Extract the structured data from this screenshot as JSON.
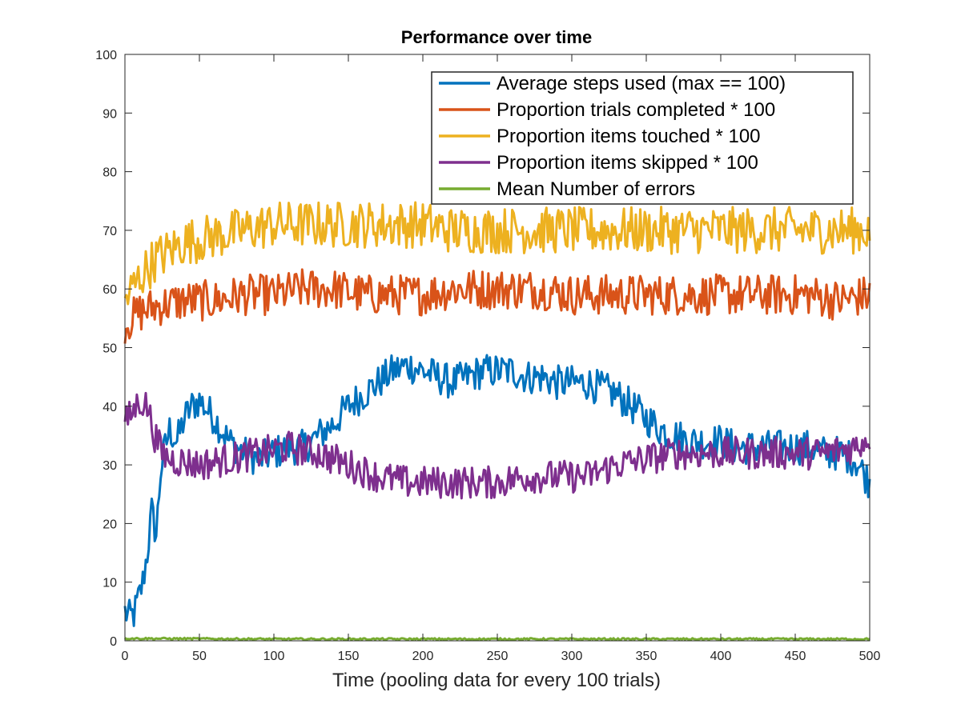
{
  "chart_data": {
    "type": "line",
    "title": "Performance over time",
    "xlabel": "Time (pooling data for every 100 trials)",
    "ylabel": "",
    "xlim": [
      0,
      500
    ],
    "ylim": [
      0,
      100
    ],
    "x_ticks": [
      0,
      50,
      100,
      150,
      200,
      250,
      300,
      350,
      400,
      450,
      500
    ],
    "y_ticks": [
      0,
      10,
      20,
      30,
      40,
      50,
      60,
      70,
      80,
      90,
      100
    ],
    "grid": false,
    "legend_position": "top-right",
    "series": [
      {
        "name": "Average steps used (max == 100)",
        "color": "#0072BD",
        "points": [
          [
            0,
            5
          ],
          [
            3,
            4
          ],
          [
            6,
            4.5
          ],
          [
            9,
            7
          ],
          [
            12,
            10
          ],
          [
            15,
            15
          ],
          [
            18,
            22
          ],
          [
            21,
            18
          ],
          [
            24,
            29
          ],
          [
            27,
            33
          ],
          [
            30,
            36
          ],
          [
            35,
            34
          ],
          [
            40,
            38
          ],
          [
            45,
            40
          ],
          [
            50,
            41
          ],
          [
            60,
            38
          ],
          [
            70,
            34
          ],
          [
            80,
            32
          ],
          [
            90,
            31
          ],
          [
            100,
            32
          ],
          [
            110,
            33
          ],
          [
            120,
            33
          ],
          [
            130,
            35
          ],
          [
            140,
            37
          ],
          [
            150,
            40
          ],
          [
            160,
            42
          ],
          [
            170,
            44
          ],
          [
            180,
            46
          ],
          [
            190,
            47
          ],
          [
            200,
            46
          ],
          [
            210,
            45
          ],
          [
            220,
            44
          ],
          [
            230,
            45
          ],
          [
            240,
            46
          ],
          [
            250,
            46
          ],
          [
            260,
            46
          ],
          [
            270,
            45
          ],
          [
            280,
            45
          ],
          [
            290,
            44
          ],
          [
            300,
            44
          ],
          [
            310,
            44
          ],
          [
            320,
            43
          ],
          [
            330,
            42
          ],
          [
            340,
            40
          ],
          [
            350,
            38
          ],
          [
            360,
            36
          ],
          [
            370,
            35
          ],
          [
            380,
            34
          ],
          [
            390,
            34
          ],
          [
            400,
            34
          ],
          [
            410,
            33
          ],
          [
            420,
            33
          ],
          [
            430,
            33
          ],
          [
            440,
            33
          ],
          [
            450,
            33
          ],
          [
            460,
            33
          ],
          [
            470,
            32
          ],
          [
            480,
            32
          ],
          [
            490,
            31
          ],
          [
            500,
            27
          ]
        ],
        "noise": 3
      },
      {
        "name": "Proportion trials completed * 100",
        "color": "#D95319",
        "points": [
          [
            0,
            54
          ],
          [
            5,
            55
          ],
          [
            10,
            56
          ],
          [
            20,
            57
          ],
          [
            40,
            58
          ],
          [
            60,
            58
          ],
          [
            80,
            59
          ],
          [
            100,
            59
          ],
          [
            120,
            60
          ],
          [
            140,
            60
          ],
          [
            160,
            59
          ],
          [
            180,
            59
          ],
          [
            200,
            59
          ],
          [
            220,
            60
          ],
          [
            240,
            60
          ],
          [
            260,
            60
          ],
          [
            280,
            60
          ],
          [
            300,
            59
          ],
          [
            320,
            59
          ],
          [
            340,
            59
          ],
          [
            360,
            59
          ],
          [
            380,
            59
          ],
          [
            400,
            59
          ],
          [
            420,
            59
          ],
          [
            440,
            59
          ],
          [
            460,
            59
          ],
          [
            480,
            58
          ],
          [
            500,
            59
          ]
        ],
        "noise": 3.5
      },
      {
        "name": "Proportion items touched * 100",
        "color": "#EDB120",
        "points": [
          [
            0,
            58
          ],
          [
            5,
            60
          ],
          [
            10,
            62
          ],
          [
            20,
            65
          ],
          [
            40,
            68
          ],
          [
            60,
            69
          ],
          [
            80,
            70
          ],
          [
            100,
            71
          ],
          [
            120,
            71
          ],
          [
            140,
            71
          ],
          [
            160,
            71
          ],
          [
            180,
            71
          ],
          [
            200,
            71
          ],
          [
            220,
            70
          ],
          [
            240,
            70
          ],
          [
            260,
            70
          ],
          [
            280,
            70
          ],
          [
            300,
            70
          ],
          [
            320,
            70
          ],
          [
            340,
            70
          ],
          [
            360,
            70
          ],
          [
            380,
            70
          ],
          [
            400,
            70
          ],
          [
            420,
            70
          ],
          [
            440,
            70
          ],
          [
            460,
            70
          ],
          [
            480,
            70
          ],
          [
            500,
            70
          ]
        ],
        "noise": 4
      },
      {
        "name": "Proportion items skipped * 100",
        "color": "#7E2F8E",
        "points": [
          [
            0,
            37
          ],
          [
            5,
            39
          ],
          [
            10,
            41
          ],
          [
            15,
            40
          ],
          [
            20,
            35
          ],
          [
            25,
            32
          ],
          [
            30,
            31
          ],
          [
            50,
            30
          ],
          [
            70,
            31
          ],
          [
            90,
            32
          ],
          [
            110,
            33
          ],
          [
            130,
            32
          ],
          [
            150,
            30
          ],
          [
            170,
            28
          ],
          [
            190,
            27
          ],
          [
            210,
            27
          ],
          [
            230,
            27
          ],
          [
            250,
            27
          ],
          [
            270,
            28
          ],
          [
            290,
            28
          ],
          [
            310,
            28
          ],
          [
            330,
            30
          ],
          [
            350,
            31
          ],
          [
            370,
            32
          ],
          [
            390,
            32
          ],
          [
            410,
            32
          ],
          [
            430,
            32
          ],
          [
            450,
            32
          ],
          [
            470,
            32
          ],
          [
            490,
            33
          ],
          [
            500,
            35
          ]
        ],
        "noise": 2.8
      },
      {
        "name": "Mean Number of errors",
        "color": "#77AC30",
        "points": [
          [
            0,
            0.4
          ],
          [
            100,
            0.3
          ],
          [
            200,
            0.3
          ],
          [
            300,
            0.3
          ],
          [
            400,
            0.3
          ],
          [
            500,
            0.3
          ]
        ],
        "noise": 0.15
      }
    ]
  }
}
